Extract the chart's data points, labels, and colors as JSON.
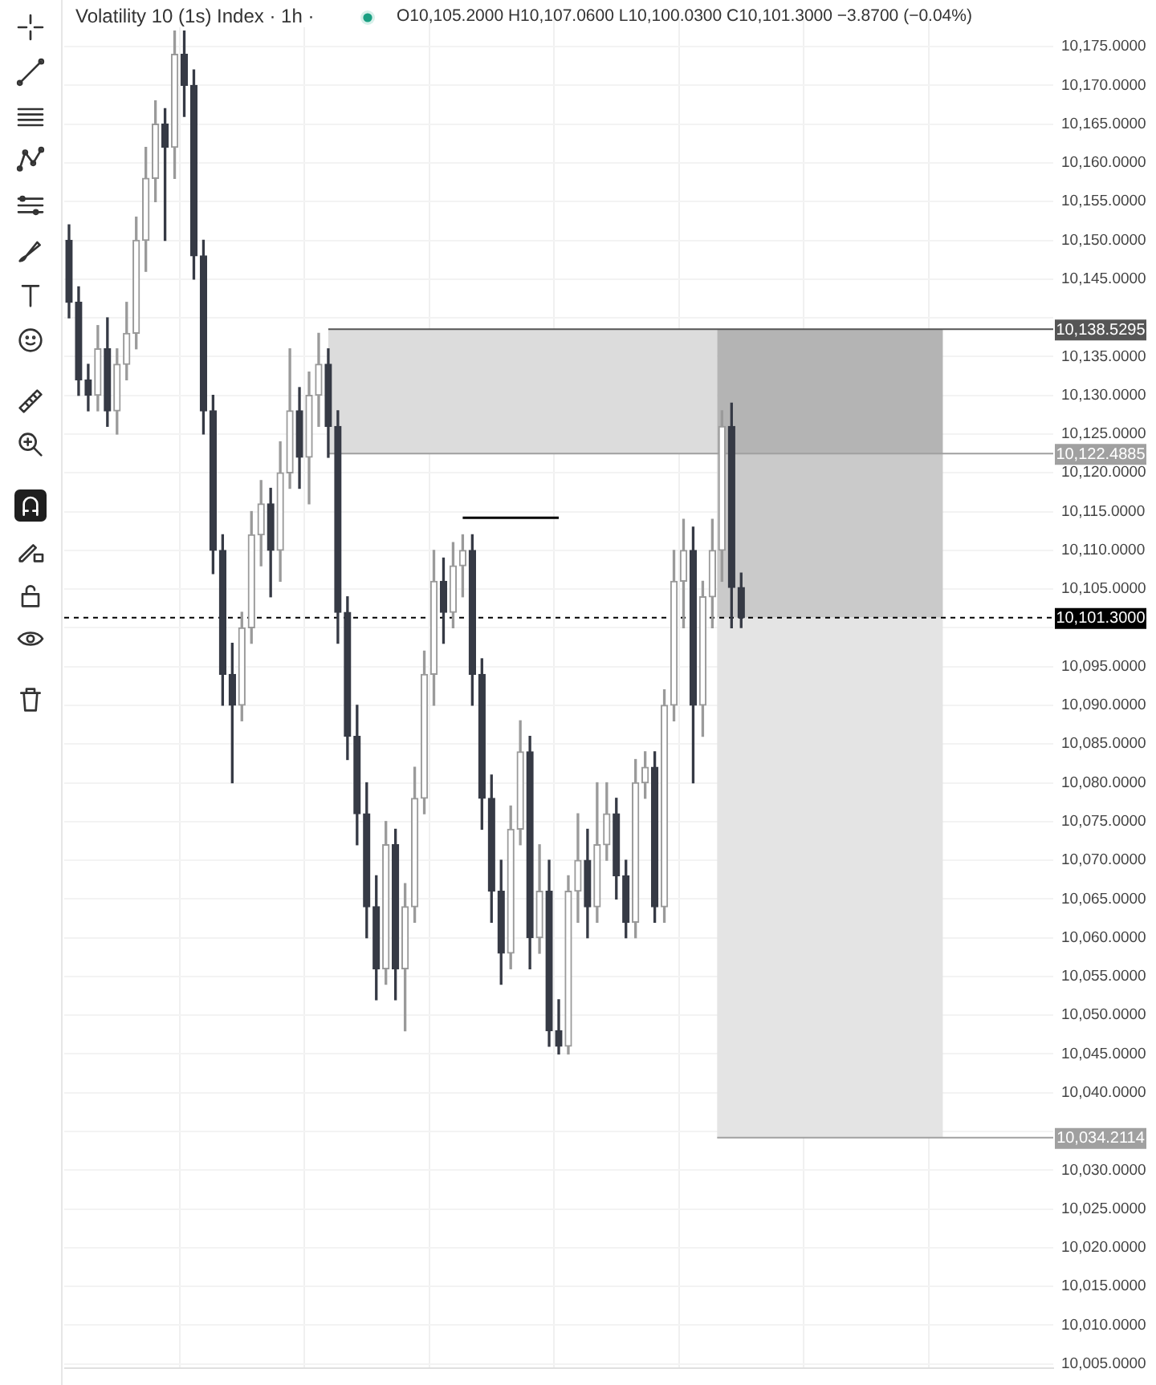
{
  "chart_data": {
    "type": "candlestick",
    "title": "Volatility 10 (1s) Index · 1h ·",
    "subtitle": "O10,105.2000 H10,107.0600 L10,100.0300 C10,101.3000 −3.8700 (−0.04%)",
    "categories": [
      null,
      null,
      null,
      null,
      null,
      null,
      null,
      null,
      null,
      null,
      null,
      null,
      null,
      null,
      null,
      null,
      null,
      null,
      null,
      null,
      null,
      null,
      null,
      null,
      null,
      null,
      null,
      null,
      null,
      null,
      null,
      null,
      null,
      null,
      null,
      null,
      null,
      null,
      null,
      null,
      null,
      null,
      null,
      null,
      null,
      null,
      null,
      null,
      null,
      null,
      null,
      null,
      null,
      null,
      null,
      null,
      null,
      null,
      null,
      null,
      null,
      null,
      null,
      null,
      null,
      null,
      null,
      null,
      null,
      null,
      null,
      null,
      null,
      null,
      null,
      null,
      null,
      null,
      null,
      null,
      null,
      null,
      null,
      null,
      null,
      null,
      null,
      null,
      null,
      null,
      null,
      null,
      null,
      null,
      null,
      null,
      null,
      null,
      null,
      null,
      null,
      null,
      null
    ],
    "colors": [
      "#363a45",
      "#363a45",
      "#363a45",
      "#9a9a9a",
      "#363a45",
      "#9a9a9a",
      "#9a9a9a",
      "#9a9a9a",
      "#9a9a9a",
      "#9a9a9a",
      "#363a45",
      "#9a9a9a",
      "#363a45",
      "#363a45",
      "#363a45",
      "#363a45",
      "#363a45",
      "#363a45",
      "#9a9a9a",
      "#9a9a9a",
      "#9a9a9a",
      "#363a45",
      "#9a9a9a",
      "#9a9a9a",
      "#363a45",
      "#9a9a9a",
      "#9a9a9a",
      "#363a45",
      "#363a45",
      "#363a45",
      "#363a45",
      "#363a45",
      "#363a45",
      "#9a9a9a",
      "#363a45",
      "#9a9a9a",
      "#9a9a9a",
      "#9a9a9a",
      "#9a9a9a",
      "#363a45",
      "#9a9a9a",
      "#9a9a9a",
      "#363a45",
      "#363a45",
      "#363a45",
      "#363a45",
      "#9a9a9a",
      "#9a9a9a",
      "#363a45",
      "#9a9a9a",
      "#363a45",
      "#363a45",
      "#9a9a9a",
      "#9a9a9a",
      "#363a45",
      "#9a9a9a",
      "#9a9a9a",
      "#363a45",
      "#363a45",
      "#9a9a9a",
      "#9a9a9a",
      "#363a45",
      "#9a9a9a",
      "#9a9a9a",
      "#9a9a9a",
      "#363a45",
      "#9a9a9a",
      "#9a9a9a",
      "#9a9a9a",
      "#363a45",
      "#363a45",
      null,
      null,
      null,
      null,
      null,
      null,
      null,
      null,
      null,
      null,
      null,
      null,
      null,
      null,
      null,
      null,
      null,
      null,
      null,
      null,
      null,
      null,
      null,
      null,
      null,
      null,
      null,
      null,
      null,
      null,
      null,
      null
    ],
    "ohlc": [
      [
        10150,
        10152,
        10140,
        10142
      ],
      [
        10142,
        10144,
        10130,
        10132
      ],
      [
        10132,
        10134,
        10128,
        10130
      ],
      [
        10130,
        10139,
        10128,
        10136
      ],
      [
        10136,
        10140,
        10126,
        10128
      ],
      [
        10128,
        10136,
        10125,
        10134
      ],
      [
        10134,
        10142,
        10132,
        10138
      ],
      [
        10138,
        10153,
        10136,
        10150
      ],
      [
        10150,
        10162,
        10146,
        10158
      ],
      [
        10158,
        10168,
        10155,
        10165
      ],
      [
        10165,
        10167,
        10150,
        10162
      ],
      [
        10162,
        10177,
        10158,
        10174
      ],
      [
        10174,
        10177,
        10166,
        10170
      ],
      [
        10170,
        10172,
        10145,
        10148
      ],
      [
        10148,
        10150,
        10125,
        10128
      ],
      [
        10128,
        10130,
        10107,
        10110
      ],
      [
        10110,
        10112,
        10090,
        10094
      ],
      [
        10094,
        10098,
        10080,
        10090
      ],
      [
        10090,
        10102,
        10088,
        10100
      ],
      [
        10100,
        10115,
        10098,
        10112
      ],
      [
        10112,
        10119,
        10108,
        10116
      ],
      [
        10116,
        10118,
        10104,
        10110
      ],
      [
        10110,
        10124,
        10106,
        10120
      ],
      [
        10120,
        10136,
        10118,
        10128
      ],
      [
        10128,
        10131,
        10118,
        10122
      ],
      [
        10122,
        10133,
        10116,
        10130
      ],
      [
        10130,
        10138,
        10126,
        10134
      ],
      [
        10134,
        10136,
        10122,
        10126
      ],
      [
        10126,
        10128,
        10098,
        10102
      ],
      [
        10102,
        10104,
        10083,
        10086
      ],
      [
        10086,
        10090,
        10072,
        10076
      ],
      [
        10076,
        10080,
        10060,
        10064
      ],
      [
        10064,
        10068,
        10052,
        10056
      ],
      [
        10056,
        10075,
        10054,
        10072
      ],
      [
        10072,
        10074,
        10052,
        10056
      ],
      [
        10056,
        10067,
        10048,
        10064
      ],
      [
        10064,
        10082,
        10062,
        10078
      ],
      [
        10078,
        10097,
        10076,
        10094
      ],
      [
        10094,
        10110,
        10090,
        10106
      ],
      [
        10106,
        10109,
        10098,
        10102
      ],
      [
        10102,
        10111,
        10100,
        10108
      ],
      [
        10108,
        10112,
        10104,
        10110
      ],
      [
        10110,
        10112,
        10090,
        10094
      ],
      [
        10094,
        10096,
        10074,
        10078
      ],
      [
        10078,
        10081,
        10062,
        10066
      ],
      [
        10066,
        10070,
        10054,
        10058
      ],
      [
        10058,
        10077,
        10056,
        10074
      ],
      [
        10074,
        10088,
        10072,
        10084
      ],
      [
        10084,
        10086,
        10056,
        10060
      ],
      [
        10060,
        10072,
        10058,
        10066
      ],
      [
        10066,
        10070,
        10046,
        10048
      ],
      [
        10048,
        10052,
        10045,
        10046
      ],
      [
        10046,
        10068,
        10045,
        10066
      ],
      [
        10066,
        10076,
        10062,
        10070
      ],
      [
        10070,
        10074,
        10060,
        10064
      ],
      [
        10064,
        10080,
        10062,
        10072
      ],
      [
        10072,
        10080,
        10070,
        10076
      ],
      [
        10076,
        10078,
        10065,
        10068
      ],
      [
        10068,
        10070,
        10060,
        10062
      ],
      [
        10062,
        10083,
        10060,
        10080
      ],
      [
        10080,
        10084,
        10078,
        10082
      ],
      [
        10082,
        10084,
        10062,
        10064
      ],
      [
        10064,
        10092,
        10062,
        10090
      ],
      [
        10090,
        10110,
        10088,
        10106
      ],
      [
        10106,
        10114,
        10100,
        10110
      ],
      [
        10110,
        10113,
        10080,
        10090
      ],
      [
        10090,
        10106,
        10086,
        10104
      ],
      [
        10104,
        10114,
        10100,
        10110
      ],
      [
        10110,
        10128,
        10106,
        10126
      ],
      [
        10126,
        10129,
        10100,
        10105.2
      ],
      [
        10105.2,
        10107.06,
        10100.03,
        10101.3
      ],
      null,
      null,
      null,
      null,
      null,
      null,
      null,
      null,
      null,
      null,
      null,
      null,
      null,
      null,
      null,
      null,
      null,
      null,
      null,
      null,
      null,
      null,
      null,
      null,
      null,
      null,
      null,
      null,
      null,
      null,
      null,
      null
    ],
    "series": [
      {
        "type": "line",
        "color": "#000000",
        "values": [
          null,
          null,
          null,
          null,
          null,
          null,
          null,
          null,
          null,
          null,
          null,
          null,
          null,
          null,
          null,
          null,
          null,
          null,
          null,
          null,
          null,
          null,
          null,
          null,
          null,
          null,
          null,
          null,
          null,
          null,
          null,
          null,
          null,
          null,
          null,
          null,
          null,
          null,
          null,
          null,
          null,
          10114.2,
          10114.2,
          10114.2,
          10114.2,
          10114.2,
          10114.2,
          10114.2,
          10114.2,
          10114.2,
          10114.2,
          10114.2,
          null,
          null,
          null,
          null,
          null,
          null,
          null,
          null,
          null,
          null,
          null,
          null,
          null,
          null,
          null,
          null,
          null,
          null,
          null,
          null,
          null,
          null,
          null,
          null,
          null,
          null,
          null,
          null,
          null,
          null,
          null,
          null,
          null,
          null,
          null,
          null,
          null,
          null,
          null,
          null,
          null,
          null,
          null,
          null,
          null,
          null,
          null,
          null,
          null,
          null,
          null
        ]
      }
    ],
    "bands": [
      {
        "axis": "y",
        "from": 10122.4885,
        "to": 10138.5295,
        "color": "#dcdcdc"
      },
      {
        "axis": "y",
        "from": 10122.4885,
        "to": 10138.5295,
        "color": "#b4b4b4"
      },
      {
        "axis": "y",
        "from": 10101.3,
        "to": 10122.4885,
        "color": "#cacaca"
      },
      {
        "axis": "y",
        "from": 10034.2114,
        "to": 10101.3,
        "color": "#e4e4e4"
      }
    ],
    "ref_lines": [
      {
        "axis": "y",
        "value": 10138.5295,
        "label": "10,138.5295",
        "color": "#555555"
      },
      {
        "axis": "y",
        "value": 10122.4885,
        "label": "10,122.4885",
        "color": "#a0a0a0"
      },
      {
        "axis": "y",
        "value": 10101.3,
        "label": "10,101.3000",
        "color": "#000000",
        "line_style": "dashed"
      },
      {
        "axis": "y",
        "value": 10034.2114,
        "label": "10,034.2114",
        "color": "#a0a0a0"
      }
    ],
    "ylim": [
      10004.5,
      10178.8
    ],
    "yticks": [
      {
        "value": 10005,
        "label": "10,005.0000"
      },
      {
        "value": 10010,
        "label": "10,010.0000"
      },
      {
        "value": 10015,
        "label": "10,015.0000"
      },
      {
        "value": 10020,
        "label": "10,020.0000"
      },
      {
        "value": 10025,
        "label": "10,025.0000"
      },
      {
        "value": 10030,
        "label": "10,030.0000"
      },
      {
        "value": 10035,
        "label": null
      },
      {
        "value": 10040,
        "label": "10,040.0000"
      },
      {
        "value": 10045,
        "label": "10,045.0000"
      },
      {
        "value": 10050,
        "label": "10,050.0000"
      },
      {
        "value": 10055,
        "label": "10,055.0000"
      },
      {
        "value": 10060,
        "label": "10,060.0000"
      },
      {
        "value": 10065,
        "label": "10,065.0000"
      },
      {
        "value": 10070,
        "label": "10,070.0000"
      },
      {
        "value": 10075,
        "label": "10,075.0000"
      },
      {
        "value": 10080,
        "label": "10,080.0000"
      },
      {
        "value": 10085,
        "label": "10,085.0000"
      },
      {
        "value": 10090,
        "label": "10,090.0000"
      },
      {
        "value": 10095,
        "label": "10,095.0000"
      },
      {
        "value": 10100,
        "label": null
      },
      {
        "value": 10105,
        "label": "10,105.0000"
      },
      {
        "value": 10110,
        "label": "10,110.0000"
      },
      {
        "value": 10115,
        "label": "10,115.0000"
      },
      {
        "value": 10120,
        "label": "10,120.0000"
      },
      {
        "value": 10125,
        "label": "10,125.0000"
      },
      {
        "value": 10130,
        "label": "10,130.0000"
      },
      {
        "value": 10135,
        "label": "10,135.0000"
      },
      {
        "value": 10140,
        "label": null
      },
      {
        "value": 10145,
        "label": "10,145.0000"
      },
      {
        "value": 10150,
        "label": "10,150.0000"
      },
      {
        "value": 10155,
        "label": "10,155.0000"
      },
      {
        "value": 10160,
        "label": "10,160.0000"
      },
      {
        "value": 10165,
        "label": "10,165.0000"
      },
      {
        "value": 10170,
        "label": "10,170.0000"
      },
      {
        "value": 10175,
        "label": "10,175.0000"
      }
    ],
    "grid": true,
    "tick_labels": "y"
  }
}
